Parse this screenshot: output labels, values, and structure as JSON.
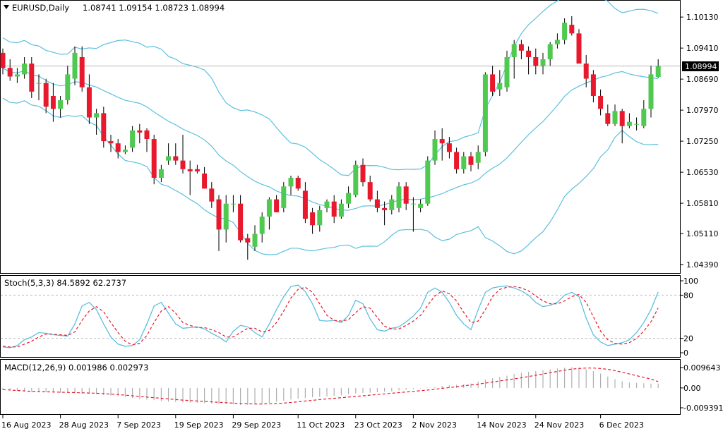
{
  "chart_data": [
    {
      "type": "candlestick",
      "title": "EURUSD,Daily",
      "symbol": "EURUSD",
      "timeframe": "Daily",
      "ohlc_header": "1.08741 1.09154 1.08723 1.08994",
      "current_price": "1.08994",
      "y_ticks": [
        "1.10130",
        "1.09410",
        "1.08690",
        "1.07970",
        "1.07250",
        "1.06530",
        "1.05810",
        "1.05110",
        "1.04390"
      ],
      "x_ticks": [
        "16 Aug 2023",
        "28 Aug 2023",
        "7 Sep 2023",
        "19 Sep 2023",
        "29 Sep 2023",
        "11 Oct 2023",
        "23 Oct 2023",
        "2 Nov 2023",
        "14 Nov 2023",
        "24 Nov 2023",
        "6 Dec 2023"
      ],
      "ylim": [
        1.0424,
        1.1046
      ],
      "colors": {
        "up": "#4fc94f",
        "down": "#e8192c",
        "bands": "#5bc0de",
        "price_line": "#c0c0c0"
      },
      "candles": [
        [
          1.093,
          1.094,
          1.088,
          1.0895
        ],
        [
          1.0895,
          1.0915,
          1.0865,
          1.0875
        ],
        [
          1.0875,
          1.0895,
          1.086,
          1.088
        ],
        [
          1.088,
          1.092,
          1.087,
          1.0905
        ],
        [
          1.0905,
          1.092,
          1.0825,
          1.084
        ],
        [
          1.086,
          1.088,
          1.082,
          1.086
        ],
        [
          1.086,
          1.087,
          1.079,
          1.0805
        ],
        [
          1.083,
          1.086,
          1.077,
          1.08
        ],
        [
          1.08,
          1.083,
          1.078,
          1.082
        ],
        [
          1.082,
          1.09,
          1.081,
          1.088
        ],
        [
          1.087,
          1.0945,
          1.0855,
          1.093
        ],
        [
          1.092,
          1.0945,
          1.084,
          1.085
        ],
        [
          1.085,
          1.088,
          1.0765,
          1.078
        ],
        [
          1.078,
          1.08,
          1.074,
          1.079
        ],
        [
          1.079,
          1.0805,
          1.071,
          1.0725
        ],
        [
          1.0725,
          1.074,
          1.07,
          1.072
        ],
        [
          1.072,
          1.073,
          1.0685,
          1.07
        ],
        [
          1.07,
          1.0715,
          1.0695,
          1.0705
        ],
        [
          1.071,
          1.076,
          1.07,
          1.075
        ],
        [
          1.075,
          1.0765,
          1.072,
          1.0745
        ],
        [
          1.075,
          1.0755,
          1.07,
          1.073
        ],
        [
          1.073,
          1.074,
          1.0625,
          1.064
        ],
        [
          1.064,
          1.067,
          1.063,
          1.066
        ],
        [
          1.068,
          1.072,
          1.067,
          1.069
        ],
        [
          1.069,
          1.072,
          1.067,
          1.068
        ],
        [
          1.068,
          1.074,
          1.065,
          1.066
        ],
        [
          1.066,
          1.068,
          1.06,
          1.0655
        ],
        [
          1.066,
          1.067,
          1.065,
          1.0655
        ],
        [
          1.065,
          1.0665,
          1.0615,
          1.0615
        ],
        [
          1.0615,
          1.063,
          1.057,
          1.0585
        ],
        [
          1.059,
          1.06,
          1.047,
          1.052
        ],
        [
          1.052,
          1.06,
          1.049,
          1.058
        ],
        [
          1.058,
          1.06,
          1.056,
          1.058
        ],
        [
          1.058,
          1.06,
          1.049,
          1.0495
        ],
        [
          1.05,
          1.051,
          1.045,
          1.049
        ],
        [
          1.048,
          1.053,
          1.047,
          1.051
        ],
        [
          1.051,
          1.056,
          1.049,
          1.055
        ],
        [
          1.055,
          1.0595,
          1.052,
          1.059
        ],
        [
          1.059,
          1.06,
          1.056,
          1.056
        ],
        [
          1.057,
          1.063,
          1.056,
          1.062
        ],
        [
          1.062,
          1.0645,
          1.06,
          1.064
        ],
        [
          1.064,
          1.0645,
          1.061,
          1.0615
        ],
        [
          1.061,
          1.063,
          1.0535,
          1.0545
        ],
        [
          1.056,
          1.057,
          1.051,
          1.053
        ],
        [
          1.053,
          1.0575,
          1.0515,
          1.0565
        ],
        [
          1.057,
          1.059,
          1.056,
          1.0585
        ],
        [
          1.0585,
          1.06,
          1.0535,
          1.055
        ],
        [
          1.055,
          1.059,
          1.0545,
          1.058
        ],
        [
          1.058,
          1.062,
          1.057,
          1.0605
        ],
        [
          1.06,
          1.068,
          1.0595,
          1.067
        ],
        [
          1.067,
          1.0685,
          1.062,
          1.063
        ],
        [
          1.063,
          1.0645,
          1.0585,
          1.059
        ],
        [
          1.059,
          1.061,
          1.056,
          1.057
        ],
        [
          1.057,
          1.0585,
          1.053,
          1.0565
        ],
        [
          1.0565,
          1.06,
          1.0555,
          1.059
        ],
        [
          1.057,
          1.063,
          1.056,
          1.062
        ],
        [
          1.062,
          1.063,
          1.0565,
          1.058
        ],
        [
          1.058,
          1.0595,
          1.0515,
          1.058
        ],
        [
          1.057,
          1.059,
          1.056,
          1.058
        ],
        [
          1.058,
          1.069,
          1.0575,
          1.068
        ],
        [
          1.068,
          1.075,
          1.067,
          1.073
        ],
        [
          1.073,
          1.0755,
          1.068,
          1.072
        ],
        [
          1.072,
          1.0735,
          1.0685,
          1.07
        ],
        [
          1.07,
          1.071,
          1.065,
          1.066
        ],
        [
          1.066,
          1.07,
          1.065,
          1.069
        ],
        [
          1.069,
          1.07,
          1.0655,
          1.067
        ],
        [
          1.0675,
          1.0715,
          1.066,
          1.07
        ],
        [
          1.07,
          1.0885,
          1.069,
          1.088
        ],
        [
          1.088,
          1.09,
          1.083,
          1.084
        ],
        [
          1.0845,
          1.089,
          1.083,
          1.086
        ],
        [
          1.085,
          1.0935,
          1.084,
          1.092
        ],
        [
          1.092,
          1.096,
          1.087,
          1.095
        ],
        [
          1.095,
          1.096,
          1.0915,
          1.0935
        ],
        [
          1.0935,
          1.0945,
          1.088,
          1.092
        ],
        [
          1.092,
          1.094,
          1.088,
          1.09
        ],
        [
          1.09,
          1.093,
          1.088,
          1.0915
        ],
        [
          1.0915,
          1.0955,
          1.09,
          1.095
        ],
        [
          1.095,
          1.0975,
          1.094,
          1.096
        ],
        [
          1.096,
          1.101,
          1.095,
          1.1
        ],
        [
          1.0995,
          1.1015,
          1.097,
          1.0975
        ],
        [
          1.0975,
          1.0985,
          1.0905,
          1.0905
        ],
        [
          1.0905,
          1.0925,
          1.085,
          1.087
        ],
        [
          1.088,
          1.089,
          1.0815,
          1.083
        ],
        [
          1.083,
          1.0845,
          1.0785,
          1.08
        ],
        [
          1.079,
          1.081,
          1.076,
          1.0765
        ],
        [
          1.0765,
          1.081,
          1.076,
          1.0795
        ],
        [
          1.0795,
          1.08,
          1.072,
          1.076
        ],
        [
          1.076,
          1.079,
          1.0755,
          1.077
        ],
        [
          1.0765,
          1.078,
          1.075,
          1.0765
        ],
        [
          1.076,
          1.082,
          1.0755,
          1.08
        ],
        [
          1.08,
          1.09,
          1.078,
          1.088
        ],
        [
          1.0874,
          1.0915,
          1.0872,
          1.0899
        ]
      ],
      "indicator_label": "Stoch(5,3,3) 84.5892 62.2737",
      "stoch_ticks": [
        "100",
        "80",
        "20",
        "0"
      ],
      "stoch_k": [
        8,
        7,
        10,
        18,
        22,
        28,
        27,
        25,
        24,
        23,
        40,
        65,
        70,
        60,
        40,
        22,
        12,
        9,
        10,
        18,
        40,
        65,
        70,
        55,
        40,
        34,
        35,
        36,
        33,
        27,
        22,
        15,
        30,
        38,
        36,
        28,
        22,
        40,
        60,
        78,
        92,
        94,
        85,
        68,
        45,
        44,
        45,
        42,
        52,
        73,
        68,
        47,
        32,
        30,
        34,
        36,
        43,
        51,
        62,
        84,
        90,
        84,
        70,
        52,
        40,
        32,
        60,
        84,
        90,
        92,
        93,
        90,
        86,
        80,
        70,
        64,
        66,
        70,
        80,
        84,
        78,
        48,
        25,
        15,
        10,
        12,
        14,
        18,
        28,
        42,
        60,
        84.6
      ],
      "stoch_d": [
        9,
        8,
        8,
        12,
        16,
        22,
        26,
        26,
        25,
        24,
        29,
        45,
        58,
        64,
        57,
        42,
        28,
        16,
        11,
        13,
        24,
        42,
        58,
        64,
        55,
        42,
        38,
        35,
        35,
        32,
        28,
        22,
        22,
        28,
        34,
        34,
        29,
        31,
        42,
        58,
        76,
        88,
        91,
        84,
        68,
        52,
        45,
        44,
        46,
        56,
        64,
        62,
        49,
        37,
        33,
        33,
        38,
        44,
        52,
        66,
        79,
        86,
        82,
        72,
        56,
        42,
        44,
        60,
        78,
        88,
        91,
        92,
        90,
        86,
        79,
        72,
        68,
        68,
        72,
        78,
        81,
        70,
        50,
        30,
        18,
        13,
        12,
        14,
        20,
        30,
        43,
        62.3
      ],
      "macd_label": "MACD(12,26,9) 0.001986 0.002973",
      "macd_ticks": [
        "0.009643",
        "0.00",
        "-0.009391"
      ],
      "macd_hist": [
        -0.001,
        -0.0012,
        -0.0014,
        -0.0016,
        -0.0018,
        -0.0019,
        -0.002,
        -0.0022,
        -0.0023,
        -0.0024,
        -0.0024,
        -0.0026,
        -0.0028,
        -0.003,
        -0.0033,
        -0.0036,
        -0.004,
        -0.0044,
        -0.0048,
        -0.0052,
        -0.0055,
        -0.0058,
        -0.0062,
        -0.0065,
        -0.0067,
        -0.0068,
        -0.0069,
        -0.007,
        -0.0072,
        -0.0074,
        -0.0076,
        -0.0077,
        -0.0078,
        -0.008,
        -0.008,
        -0.0078,
        -0.0074,
        -0.007,
        -0.0065,
        -0.006,
        -0.0055,
        -0.0051,
        -0.0048,
        -0.0044,
        -0.0042,
        -0.004,
        -0.0038,
        -0.0035,
        -0.003,
        -0.0026,
        -0.0024,
        -0.0022,
        -0.002,
        -0.0018,
        -0.0016,
        -0.0012,
        -0.0008,
        -0.0005,
        -0.0002,
        0.0001,
        0.0005,
        0.001,
        0.0012,
        0.0015,
        0.0018,
        0.0021,
        0.003,
        0.004,
        0.0046,
        0.0052,
        0.0058,
        0.0066,
        0.0072,
        0.0076,
        0.008,
        0.0084,
        0.0088,
        0.0092,
        0.0096,
        0.0098,
        0.0096,
        0.0088,
        0.008,
        0.0068,
        0.0054,
        0.0042,
        0.0032,
        0.0026,
        0.0024,
        0.0022,
        0.002,
        0.002
      ],
      "macd_signal": [
        -0.0008,
        -0.001,
        -0.0012,
        -0.0014,
        -0.0016,
        -0.0017,
        -0.0018,
        -0.0019,
        -0.002,
        -0.0021,
        -0.0022,
        -0.0023,
        -0.0024,
        -0.0025,
        -0.0027,
        -0.0029,
        -0.0031,
        -0.0034,
        -0.0037,
        -0.004,
        -0.0043,
        -0.0046,
        -0.0049,
        -0.0052,
        -0.0055,
        -0.0058,
        -0.006,
        -0.0062,
        -0.0064,
        -0.0066,
        -0.0068,
        -0.007,
        -0.0072,
        -0.0074,
        -0.0075,
        -0.0076,
        -0.0076,
        -0.0075,
        -0.0074,
        -0.0072,
        -0.0069,
        -0.0066,
        -0.0062,
        -0.0059,
        -0.0055,
        -0.0052,
        -0.0049,
        -0.0046,
        -0.0043,
        -0.004,
        -0.0037,
        -0.0034,
        -0.0031,
        -0.0028,
        -0.0025,
        -0.0022,
        -0.0019,
        -0.0016,
        -0.0013,
        -0.001,
        -0.0006,
        -0.0002,
        0.0002,
        0.0006,
        0.001,
        0.0014,
        0.0018,
        0.0023,
        0.0028,
        0.0033,
        0.0038,
        0.0043,
        0.0048,
        0.0054,
        0.006,
        0.0066,
        0.0072,
        0.0078,
        0.0084,
        0.0089,
        0.0092,
        0.0094,
        0.0094,
        0.0092,
        0.0088,
        0.0082,
        0.0074,
        0.0066,
        0.0058,
        0.005,
        0.0042,
        0.003
      ]
    }
  ]
}
